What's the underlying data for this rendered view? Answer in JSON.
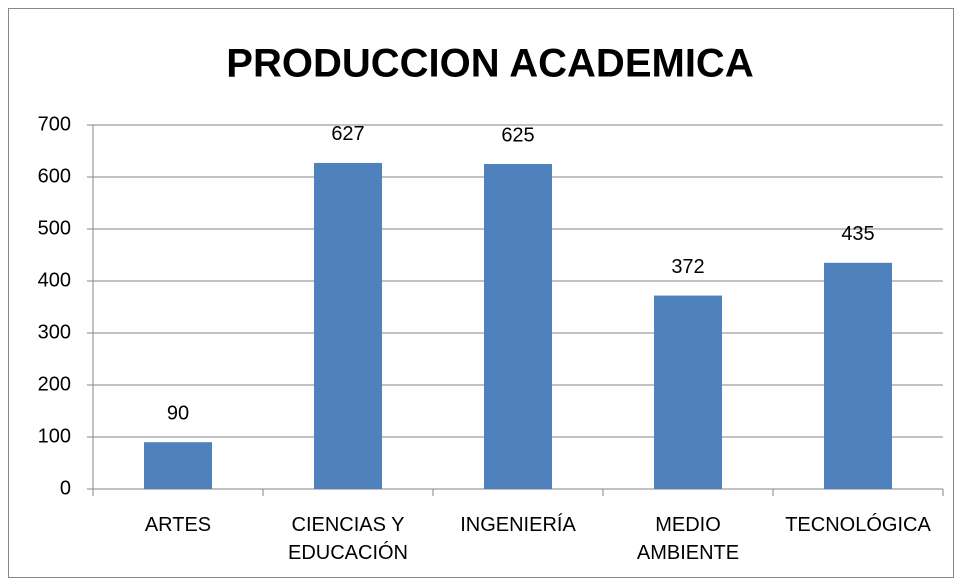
{
  "chart_data": {
    "type": "bar",
    "title": "PRODUCCION ACADEMICA",
    "categories": [
      "ARTES",
      "CIENCIAS Y\nEDUCACIÓN",
      "INGENIERÍA",
      "MEDIO\nAMBIENTE",
      "TECNOLÓGICA"
    ],
    "values": [
      90,
      627,
      625,
      372,
      435
    ],
    "color": "#4f81bd",
    "ylim": [
      0,
      700
    ],
    "yticks": [
      0,
      100,
      200,
      300,
      400,
      500,
      600,
      700
    ],
    "grid": true
  }
}
